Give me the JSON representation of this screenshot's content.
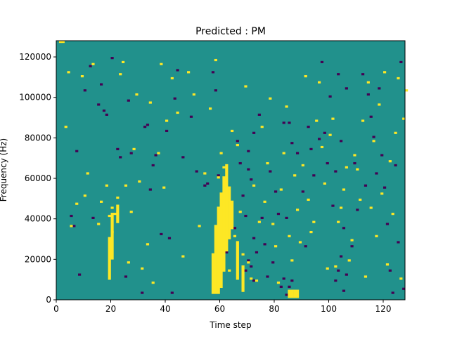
{
  "chart_data": {
    "type": "heatmap",
    "title": "Predicted : PM",
    "xlabel": "Time step",
    "ylabel": "Frequency (Hz)",
    "xlim": [
      0,
      128
    ],
    "ylim": [
      0,
      128000
    ],
    "x_ticks": [
      0,
      20,
      40,
      60,
      80,
      100,
      120
    ],
    "y_ticks": [
      0,
      20000,
      40000,
      60000,
      80000,
      100000,
      120000
    ],
    "n_time_steps": 128,
    "n_freq_bins": 128,
    "colormap": [
      "#440154",
      "#21918c",
      "#fde725"
    ],
    "background_value": 0.5,
    "cells_low": [
      [
        5,
        41
      ],
      [
        6,
        36
      ],
      [
        7,
        73
      ],
      [
        8,
        12
      ],
      [
        10,
        103
      ],
      [
        12,
        115
      ],
      [
        13,
        40
      ],
      [
        15,
        96
      ],
      [
        16,
        106
      ],
      [
        17,
        93
      ],
      [
        18,
        91
      ],
      [
        20,
        119
      ],
      [
        22,
        74
      ],
      [
        23,
        70
      ],
      [
        25,
        11
      ],
      [
        26,
        98
      ],
      [
        27,
        72
      ],
      [
        31,
        3
      ],
      [
        32,
        85
      ],
      [
        33,
        86
      ],
      [
        34,
        54
      ],
      [
        35,
        66
      ],
      [
        36,
        71
      ],
      [
        38,
        32
      ],
      [
        40,
        83
      ],
      [
        41,
        30
      ],
      [
        42,
        3
      ],
      [
        43,
        99
      ],
      [
        44,
        113
      ],
      [
        46,
        70
      ],
      [
        49,
        90
      ],
      [
        51,
        63
      ],
      [
        54,
        56
      ],
      [
        55,
        57
      ],
      [
        57,
        112
      ],
      [
        58,
        103
      ],
      [
        59,
        61
      ],
      [
        60,
        42
      ],
      [
        61,
        21
      ],
      [
        62,
        23
      ],
      [
        65,
        35
      ],
      [
        66,
        78
      ],
      [
        67,
        67
      ],
      [
        68,
        51
      ],
      [
        69,
        41
      ],
      [
        70,
        64
      ],
      [
        70,
        73
      ],
      [
        71,
        59
      ],
      [
        72,
        82
      ],
      [
        72,
        30
      ],
      [
        73,
        23
      ],
      [
        74,
        91
      ],
      [
        75,
        40
      ],
      [
        76,
        27
      ],
      [
        77,
        11
      ],
      [
        78,
        63
      ],
      [
        79,
        18
      ],
      [
        80,
        53
      ],
      [
        81,
        42
      ],
      [
        83,
        87
      ],
      [
        84,
        40
      ],
      [
        85,
        87
      ],
      [
        86,
        77
      ],
      [
        88,
        72
      ],
      [
        90,
        53
      ],
      [
        91,
        26
      ],
      [
        92,
        85
      ],
      [
        93,
        74
      ],
      [
        94,
        61
      ],
      [
        96,
        79
      ],
      [
        97,
        117
      ],
      [
        98,
        82
      ],
      [
        99,
        67
      ],
      [
        100,
        100
      ],
      [
        101,
        46
      ],
      [
        102,
        63
      ],
      [
        103,
        111
      ],
      [
        104,
        78
      ],
      [
        105,
        35
      ],
      [
        106,
        104
      ],
      [
        108,
        26
      ],
      [
        109,
        67
      ],
      [
        110,
        44
      ],
      [
        112,
        111
      ],
      [
        113,
        56
      ],
      [
        114,
        101
      ],
      [
        115,
        90
      ],
      [
        116,
        80
      ],
      [
        117,
        62
      ],
      [
        118,
        104
      ],
      [
        119,
        71
      ],
      [
        120,
        55
      ],
      [
        121,
        37
      ],
      [
        122,
        14
      ],
      [
        123,
        3
      ],
      [
        124,
        66
      ],
      [
        125,
        28
      ],
      [
        126,
        117
      ],
      [
        127,
        5
      ],
      [
        84,
        2
      ],
      [
        85,
        6
      ],
      [
        86,
        9
      ],
      [
        86,
        3
      ],
      [
        70,
        19
      ],
      [
        69,
        14
      ],
      [
        71,
        16
      ],
      [
        72,
        9
      ],
      [
        83,
        10
      ],
      [
        82,
        6
      ],
      [
        102,
        9
      ],
      [
        103,
        14
      ],
      [
        104,
        21
      ],
      [
        105,
        4
      ],
      [
        106,
        12
      ]
    ],
    "cells_high": [
      [
        1,
        127
      ],
      [
        2,
        127
      ],
      [
        3,
        85
      ],
      [
        4,
        112
      ],
      [
        5,
        36
      ],
      [
        7,
        47
      ],
      [
        9,
        110
      ],
      [
        10,
        51
      ],
      [
        11,
        62
      ],
      [
        13,
        116
      ],
      [
        15,
        37
      ],
      [
        16,
        48
      ],
      [
        18,
        56
      ],
      [
        19,
        41
      ],
      [
        20,
        45
      ],
      [
        20,
        33
      ],
      [
        21,
        42
      ],
      [
        22,
        50
      ],
      [
        23,
        111
      ],
      [
        24,
        117
      ],
      [
        25,
        56
      ],
      [
        26,
        18
      ],
      [
        27,
        43
      ],
      [
        28,
        74
      ],
      [
        29,
        101
      ],
      [
        30,
        58
      ],
      [
        31,
        15
      ],
      [
        33,
        27
      ],
      [
        34,
        97
      ],
      [
        35,
        8
      ],
      [
        37,
        72
      ],
      [
        38,
        116
      ],
      [
        39,
        55
      ],
      [
        40,
        88
      ],
      [
        42,
        109
      ],
      [
        44,
        92
      ],
      [
        46,
        21
      ],
      [
        48,
        112
      ],
      [
        50,
        101
      ],
      [
        52,
        36
      ],
      [
        54,
        62
      ],
      [
        56,
        94
      ],
      [
        58,
        118
      ],
      [
        59,
        60
      ],
      [
        60,
        72
      ],
      [
        61,
        65
      ],
      [
        62,
        49
      ],
      [
        63,
        14
      ],
      [
        64,
        83
      ],
      [
        65,
        31
      ],
      [
        66,
        76
      ],
      [
        67,
        43
      ],
      [
        68,
        22
      ],
      [
        69,
        105
      ],
      [
        70,
        18
      ],
      [
        71,
        10
      ],
      [
        72,
        56
      ],
      [
        73,
        9
      ],
      [
        74,
        38
      ],
      [
        75,
        85
      ],
      [
        76,
        48
      ],
      [
        77,
        67
      ],
      [
        78,
        99
      ],
      [
        79,
        37
      ],
      [
        80,
        26
      ],
      [
        81,
        8
      ],
      [
        82,
        54
      ],
      [
        83,
        72
      ],
      [
        84,
        95
      ],
      [
        85,
        31
      ],
      [
        86,
        19
      ],
      [
        87,
        61
      ],
      [
        88,
        44
      ],
      [
        89,
        28
      ],
      [
        90,
        66
      ],
      [
        91,
        110
      ],
      [
        92,
        49
      ],
      [
        93,
        33
      ],
      [
        94,
        38
      ],
      [
        95,
        88
      ],
      [
        96,
        107
      ],
      [
        97,
        75
      ],
      [
        98,
        57
      ],
      [
        99,
        15
      ],
      [
        100,
        81
      ],
      [
        101,
        89
      ],
      [
        102,
        16
      ],
      [
        103,
        38
      ],
      [
        104,
        45
      ],
      [
        105,
        54
      ],
      [
        106,
        65
      ],
      [
        107,
        19
      ],
      [
        108,
        29
      ],
      [
        109,
        71
      ],
      [
        110,
        64
      ],
      [
        111,
        49
      ],
      [
        112,
        88
      ],
      [
        113,
        11
      ],
      [
        114,
        107
      ],
      [
        115,
        45
      ],
      [
        116,
        78
      ],
      [
        117,
        31
      ],
      [
        118,
        96
      ],
      [
        119,
        52
      ],
      [
        120,
        112
      ],
      [
        121,
        17
      ],
      [
        122,
        68
      ],
      [
        123,
        42
      ],
      [
        124,
        82
      ],
      [
        125,
        109
      ],
      [
        126,
        10
      ],
      [
        127,
        89
      ],
      [
        128,
        103
      ]
    ],
    "cells_high_runs": [
      [
        19,
        10,
        30
      ],
      [
        20,
        20,
        42
      ],
      [
        22,
        38,
        46
      ],
      [
        57,
        3,
        22
      ],
      [
        58,
        3,
        36
      ],
      [
        59,
        3,
        45
      ],
      [
        60,
        6,
        52
      ],
      [
        61,
        14,
        60
      ],
      [
        62,
        24,
        66
      ],
      [
        63,
        30,
        55
      ],
      [
        64,
        35,
        48
      ],
      [
        66,
        10,
        28
      ],
      [
        68,
        4,
        16
      ],
      [
        85,
        1,
        4
      ],
      [
        86,
        1,
        4
      ],
      [
        87,
        1,
        4
      ],
      [
        88,
        1,
        4
      ]
    ]
  }
}
